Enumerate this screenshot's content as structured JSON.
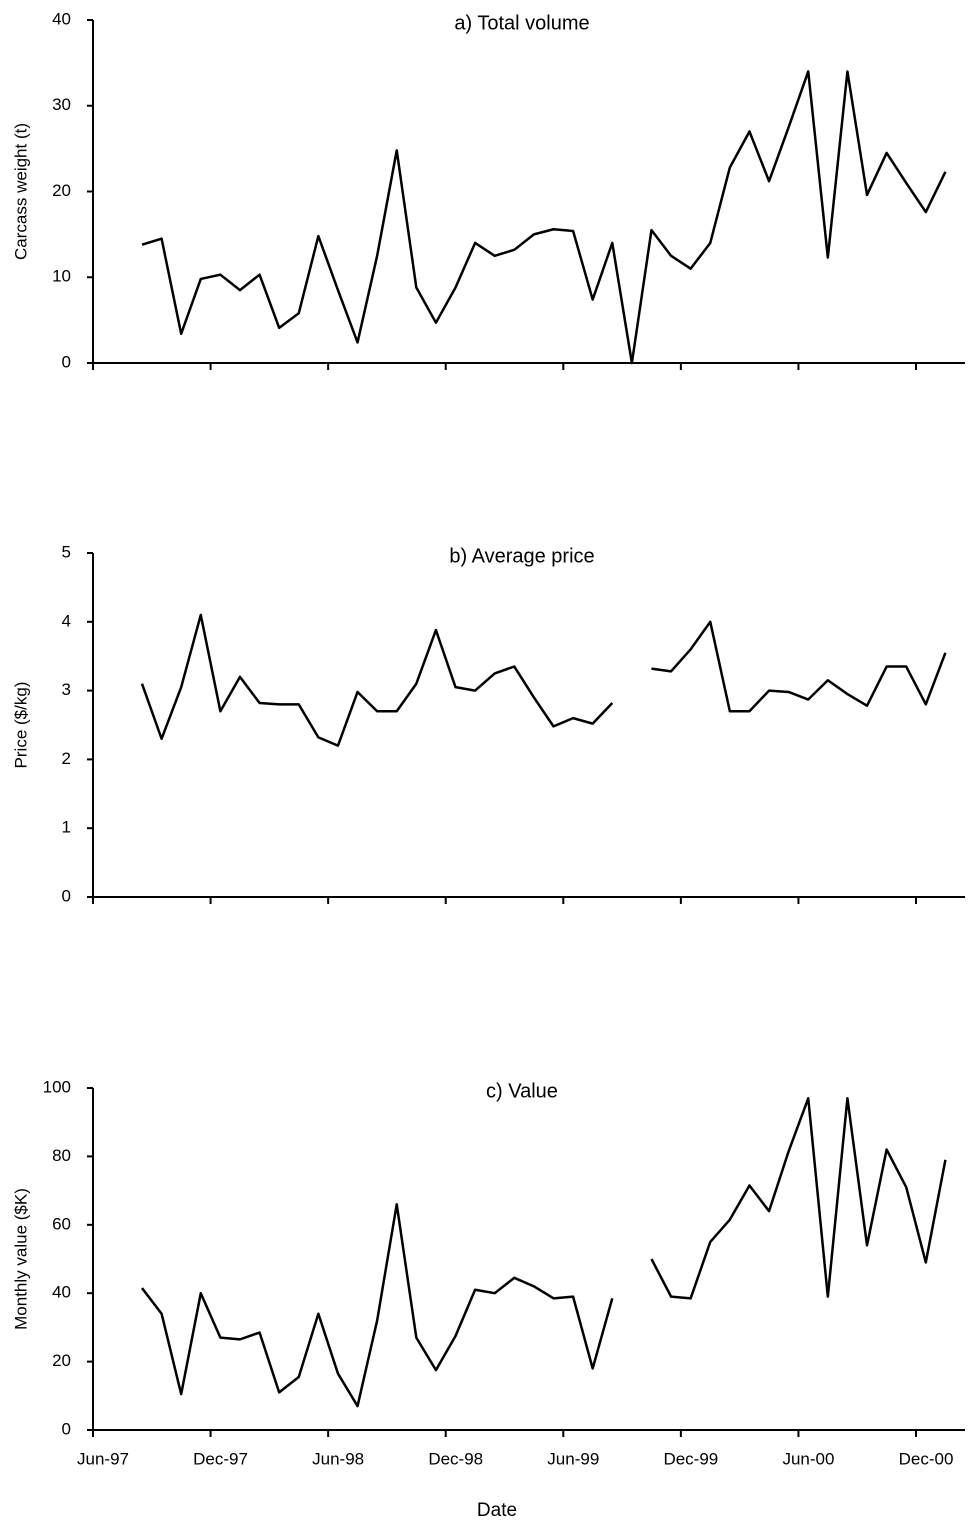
{
  "chart_data": [
    {
      "type": "line",
      "title": "a) Total volume",
      "ylabel": "Carcass weight (t)",
      "x": [
        0,
        1,
        2,
        3,
        4,
        5,
        6,
        7,
        8,
        9,
        10,
        11,
        12,
        13,
        14,
        15,
        16,
        17,
        18,
        19,
        20,
        21,
        22,
        23,
        24,
        25,
        26,
        27,
        28,
        29,
        30,
        31,
        32,
        33,
        34,
        35,
        36,
        37,
        38,
        39,
        40,
        41
      ],
      "series": [
        {
          "color": "#000000",
          "values": [
            13.8,
            14.5,
            3.4,
            9.8,
            10.3,
            8.5,
            10.3,
            4.1,
            5.8,
            14.8,
            8.5,
            2.4,
            12.5,
            24.8,
            8.8,
            4.7,
            8.8,
            14,
            12.5,
            13.2,
            15,
            15.6,
            15.4,
            7.4,
            14,
            0,
            15.5,
            12.5,
            11,
            14,
            22.8,
            27,
            21.2,
            27.5,
            34,
            12.3,
            34,
            19.6,
            24.5,
            21,
            17.6,
            22.3
          ]
        }
      ],
      "xlim": [
        -2.5,
        42
      ],
      "xticks": [
        -2.5,
        3.5,
        9.5,
        15.5,
        21.5,
        27.5,
        33.5,
        39.5
      ],
      "ylim": [
        0,
        40
      ],
      "yticks": [
        0,
        10,
        20,
        30,
        40
      ]
    },
    {
      "type": "line",
      "title": "b) Average price",
      "ylabel": "Price ($/kg)",
      "x": [
        0,
        1,
        2,
        3,
        4,
        5,
        6,
        7,
        8,
        9,
        10,
        11,
        12,
        13,
        14,
        15,
        16,
        17,
        18,
        19,
        20,
        21,
        22,
        23,
        24,
        25,
        26,
        27,
        28,
        29,
        30,
        31,
        32,
        33,
        34,
        35,
        36,
        37,
        38,
        39,
        40,
        41
      ],
      "series": [
        {
          "color": "#000000",
          "values": [
            3.1,
            2.3,
            3.05,
            4.1,
            2.7,
            3.2,
            2.82,
            2.8,
            2.8,
            2.32,
            2.2,
            2.98,
            2.7,
            2.7,
            3.1,
            3.88,
            3.05,
            3.0,
            3.25,
            3.35,
            2.9,
            2.48,
            2.6,
            2.52,
            2.82,
            null,
            3.32,
            3.28,
            3.6,
            4.0,
            2.7,
            2.7,
            3.0,
            2.98,
            2.87,
            3.15,
            2.95,
            2.78,
            3.35,
            3.35,
            2.8,
            3.55
          ]
        }
      ],
      "xlim": [
        -2.5,
        42
      ],
      "xticks": [
        -2.5,
        3.5,
        9.5,
        15.5,
        21.5,
        27.5,
        33.5,
        39.5
      ],
      "ylim": [
        0,
        5
      ],
      "yticks": [
        0,
        1,
        2,
        3,
        4,
        5
      ]
    },
    {
      "type": "line",
      "title": "c) Value",
      "ylabel": "Monthly value ($K)",
      "xlabel": "Date",
      "x": [
        0,
        1,
        2,
        3,
        4,
        5,
        6,
        7,
        8,
        9,
        10,
        11,
        12,
        13,
        14,
        15,
        16,
        17,
        18,
        19,
        20,
        21,
        22,
        23,
        24,
        25,
        26,
        27,
        28,
        29,
        30,
        31,
        32,
        33,
        34,
        35,
        36,
        37,
        38,
        39,
        40,
        41
      ],
      "series": [
        {
          "color": "#000000",
          "values": [
            41.5,
            34,
            10.5,
            40,
            27,
            26.5,
            28.5,
            11,
            15.5,
            34,
            16.5,
            7,
            32,
            66,
            27,
            17.5,
            27.5,
            41,
            40,
            44.5,
            42,
            38.5,
            39,
            18,
            38.5,
            null,
            50,
            39,
            38.5,
            55,
            61.5,
            71.5,
            64,
            81.5,
            97,
            39,
            97,
            54,
            82,
            71,
            49,
            79
          ]
        }
      ],
      "xlim": [
        -2.5,
        42
      ],
      "xticks": [
        {
          "value": -2.5,
          "label": "Jun-97"
        },
        {
          "value": 3.5,
          "label": "Dec-97"
        },
        {
          "value": 9.5,
          "label": "Jun-98"
        },
        {
          "value": 15.5,
          "label": "Dec-98"
        },
        {
          "value": 21.5,
          "label": "Jun-99"
        },
        {
          "value": 27.5,
          "label": "Dec-99"
        },
        {
          "value": 33.5,
          "label": "Jun-00"
        },
        {
          "value": 39.5,
          "label": "Dec-00"
        }
      ],
      "ylim": [
        0,
        100
      ],
      "yticks": [
        0,
        20,
        40,
        60,
        80,
        100
      ]
    }
  ]
}
